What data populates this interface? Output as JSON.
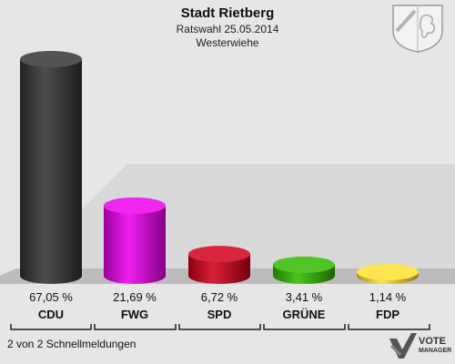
{
  "header": {
    "title": "Stadt Rietberg",
    "subtitle": "Ratswahl 25.05.2014",
    "district": "Westerwiehe"
  },
  "footer": {
    "note": "2 von 2 Schnellmeldungen",
    "brand": "VOTE",
    "brand_sub": "MANAGER"
  },
  "chart_data": {
    "type": "bar",
    "categories": [
      "CDU",
      "FWG",
      "SPD",
      "GRÜNE",
      "FDP"
    ],
    "values": [
      67.05,
      21.69,
      6.72,
      3.41,
      1.14
    ],
    "value_labels": [
      "67,05 %",
      "21,69 %",
      "6,72 %",
      "3,41 %",
      "1,14 %"
    ],
    "colors": [
      "#353535",
      "#ee00ee",
      "#d4001a",
      "#33bb00",
      "#ffe030"
    ],
    "ylim": [
      0,
      70
    ],
    "grid": false,
    "legend": "none"
  }
}
